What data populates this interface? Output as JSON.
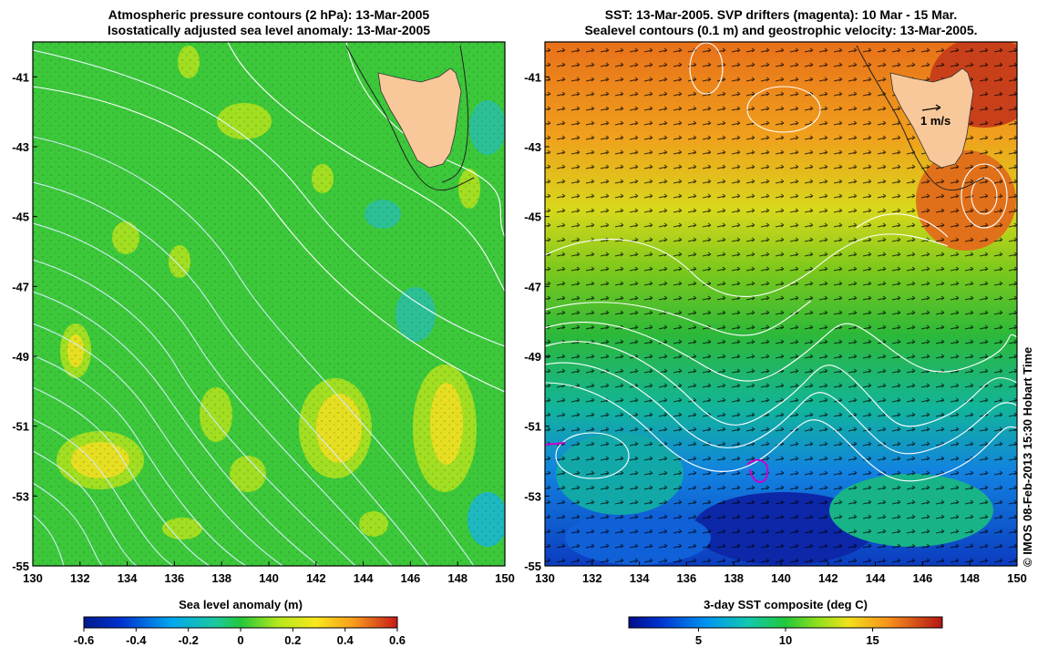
{
  "left_panel": {
    "title_line1": "Atmospheric pressure contours (2 hPa): 13-Mar-2005",
    "title_line2": "Isostatically adjusted sea level anomaly: 13-Mar-2005",
    "colorbar_label": "Sea level anomaly (m)",
    "colorbar_ticks": [
      "-0.6",
      "-0.4",
      "-0.2",
      "0",
      "0.2",
      "0.4",
      "0.6"
    ]
  },
  "right_panel": {
    "title_line1": "SST: 13-Mar-2005. SVP drifters (magenta): 10 Mar - 15 Mar.",
    "title_line2": "Sealevel contours (0.1 m) and geostrophic velocity: 13-Mar-2005.",
    "colorbar_label": "3-day SST composite (deg C)",
    "colorbar_ticks": [
      "5",
      "10",
      "15"
    ],
    "velocity_scale_label": "1 m/s"
  },
  "axes": {
    "x_ticks": [
      "130",
      "132",
      "134",
      "136",
      "138",
      "140",
      "142",
      "144",
      "146",
      "148",
      "150"
    ],
    "y_ticks": [
      "-41",
      "-43",
      "-45",
      "-47",
      "-49",
      "-51",
      "-53",
      "-55"
    ],
    "lon_range": [
      130,
      150
    ],
    "lat_range": [
      -40,
      -55
    ]
  },
  "credit": "© IMOS 08-Feb-2013 15:30 Hobart Time",
  "colors": {
    "land": "#f8c89a",
    "anomaly_base": "#3cc83a",
    "pressure_contours": "#cfeef5",
    "drifter": "#cc00cc"
  }
}
